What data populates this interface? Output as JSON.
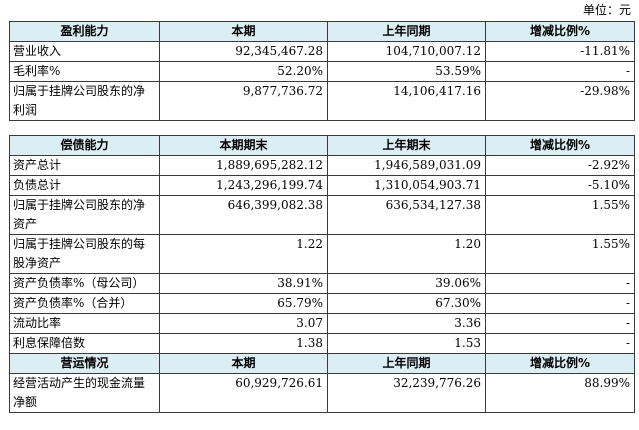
{
  "unit_label": "单位：元",
  "table1": {
    "headers": [
      "盈利能力",
      "本期",
      "上年同期",
      "增减比例%"
    ],
    "rows": [
      {
        "label": "营业收入",
        "current": "92,345,467.28",
        "prior": "104,710,007.12",
        "change": "-11.81%"
      },
      {
        "label": "毛利率%",
        "current": "52.20%",
        "prior": "53.59%",
        "change": "-"
      },
      {
        "label": "归属于挂牌公司股东的净利润",
        "current": "9,877,736.72",
        "prior": "14,106,417.16",
        "change": "-29.98%"
      }
    ]
  },
  "table2": {
    "headers": [
      "偿债能力",
      "本期期末",
      "上年期末",
      "增减比例%"
    ],
    "rows": [
      {
        "label": "资产总计",
        "current": "1,889,695,282.12",
        "prior": "1,946,589,031.09",
        "change": "-2.92%"
      },
      {
        "label": "负债总计",
        "current": "1,243,296,199.74",
        "prior": "1,310,054,903.71",
        "change": "-5.10%"
      },
      {
        "label": "归属于挂牌公司股东的净资产",
        "current": "646,399,082.38",
        "prior": "636,534,127.38",
        "change": "1.55%"
      },
      {
        "label": "归属于挂牌公司股东的每股净资产",
        "current": "1.22",
        "prior": "1.20",
        "change": "1.55%"
      },
      {
        "label": "资产负债率%（母公司）",
        "current": "38.91%",
        "prior": "39.06%",
        "change": "-"
      },
      {
        "label": "资产负债率%（合并）",
        "current": "65.79%",
        "prior": "67.30%",
        "change": "-"
      },
      {
        "label": "流动比率",
        "current": "3.07",
        "prior": "3.36",
        "change": "-"
      },
      {
        "label": "利息保障倍数",
        "current": "1.38",
        "prior": "1.53",
        "change": "-"
      }
    ],
    "section2_headers": [
      "营运情况",
      "本期",
      "上年同期",
      "增减比例%"
    ],
    "section2_rows": [
      {
        "label": "经营活动产生的现金流量净额",
        "current": "60,929,726.61",
        "prior": "32,239,776.26",
        "change": "88.99%"
      }
    ]
  }
}
